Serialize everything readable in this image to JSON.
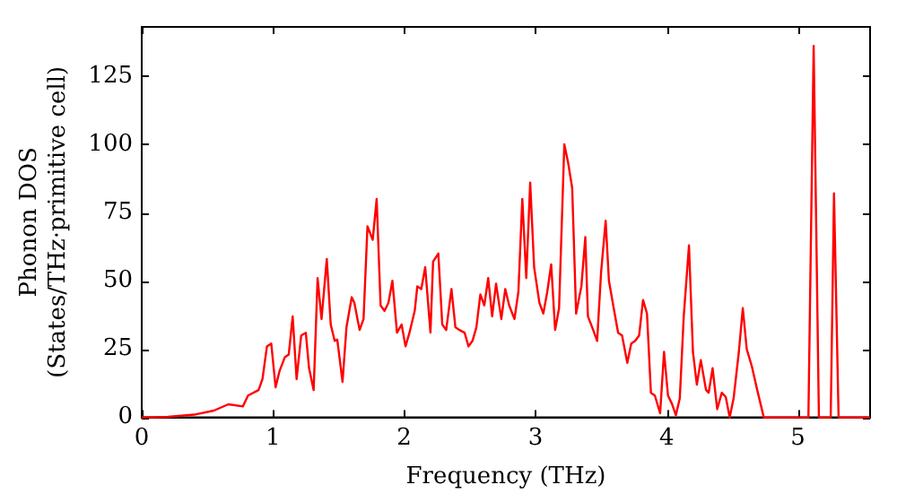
{
  "chart_data": {
    "type": "line",
    "xlabel": "Frequency (THz)",
    "ylabel": "Phonon DOS\n(States/THz·primitive cell)",
    "xlim": [
      0,
      5.55
    ],
    "ylim": [
      0,
      143
    ],
    "xticks": [
      0,
      1,
      2,
      3,
      4,
      5
    ],
    "yticks": [
      0,
      25,
      50,
      75,
      100,
      125
    ],
    "grid": false,
    "legend": false,
    "marker": "none",
    "line_style": "solid",
    "series": [
      {
        "color": "#ff0000",
        "x": [
          0,
          0.2,
          0.4,
          0.55,
          0.66,
          0.77,
          0.81,
          0.89,
          0.92,
          0.954,
          0.987,
          1.02,
          1.05,
          1.09,
          1.12,
          1.15,
          1.18,
          1.215,
          1.25,
          1.275,
          1.31,
          1.34,
          1.37,
          1.41,
          1.44,
          1.47,
          1.49,
          1.53,
          1.56,
          1.6,
          1.62,
          1.66,
          1.69,
          1.72,
          1.76,
          1.79,
          1.82,
          1.85,
          1.88,
          1.91,
          1.945,
          1.98,
          2.01,
          2.04,
          2.08,
          2.1,
          2.13,
          2.16,
          2.2,
          2.22,
          2.26,
          2.29,
          2.32,
          2.36,
          2.39,
          2.42,
          2.46,
          2.49,
          2.52,
          2.55,
          2.58,
          2.61,
          2.64,
          2.67,
          2.7,
          2.74,
          2.77,
          2.8,
          2.84,
          2.87,
          2.9,
          2.93,
          2.96,
          2.99,
          3.03,
          3.06,
          3.09,
          3.12,
          3.15,
          3.18,
          3.22,
          3.25,
          3.28,
          3.31,
          3.35,
          3.38,
          3.4,
          3.44,
          3.47,
          3.5,
          3.535,
          3.56,
          3.6,
          3.63,
          3.66,
          3.7,
          3.73,
          3.76,
          3.79,
          3.82,
          3.85,
          3.88,
          3.91,
          3.95,
          3.98,
          4.01,
          4.04,
          4.07,
          4.1,
          4.13,
          4.17,
          4.2,
          4.23,
          4.26,
          4.3,
          4.32,
          4.35,
          4.385,
          4.42,
          4.45,
          4.48,
          4.51,
          4.55,
          4.58,
          4.61,
          4.65,
          4.69,
          4.74,
          5.08,
          5.12,
          5.16,
          5.25,
          5.275,
          5.31,
          5.55
        ],
        "values": [
          0,
          0.2,
          1,
          2.5,
          4.8,
          4,
          8,
          10,
          14,
          26,
          27,
          11,
          17,
          22,
          23,
          37,
          14,
          30,
          31,
          18,
          10,
          51,
          36,
          58,
          34,
          28,
          28.5,
          13,
          33,
          44,
          42,
          32,
          36,
          70,
          65,
          80,
          41,
          39,
          42,
          50,
          31,
          34,
          26,
          31,
          39,
          48,
          47,
          55,
          31,
          57,
          60,
          34,
          32,
          47,
          33,
          32,
          31,
          26,
          28,
          33,
          45,
          41,
          51,
          37,
          49,
          36,
          47,
          41,
          36,
          46,
          80,
          51,
          86,
          55,
          42,
          38,
          46,
          56,
          32,
          40,
          100,
          93,
          84,
          38,
          48,
          66,
          37,
          32,
          28,
          53,
          72,
          50,
          39,
          31,
          30,
          20,
          27,
          28,
          30,
          43,
          38,
          9,
          8,
          1.5,
          24,
          8,
          5,
          0.8,
          7,
          37,
          63,
          24,
          12,
          21,
          10,
          9,
          18,
          3,
          9,
          7.5,
          0,
          7,
          24,
          40,
          25,
          18.5,
          10,
          0,
          0,
          136,
          0,
          0,
          82,
          0,
          0
        ]
      }
    ]
  }
}
